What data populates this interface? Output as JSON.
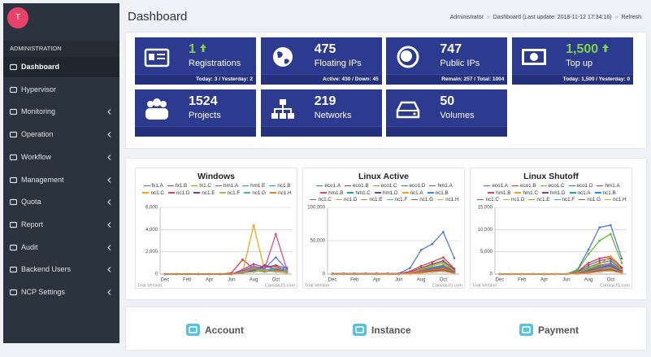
{
  "sidebar": {
    "avatar": "T",
    "section": "ADMINISTRATION",
    "active_index": 0,
    "items": [
      {
        "label": "Dashboard",
        "submenu": false
      },
      {
        "label": "Hypervisor",
        "submenu": false
      },
      {
        "label": "Monitoring",
        "submenu": true
      },
      {
        "label": "Operation",
        "submenu": true
      },
      {
        "label": "Workflow",
        "submenu": true
      },
      {
        "label": "Management",
        "submenu": true
      },
      {
        "label": "Quota",
        "submenu": true
      },
      {
        "label": "Report",
        "submenu": true
      },
      {
        "label": "Audit",
        "submenu": true
      },
      {
        "label": "Backend Users",
        "submenu": true
      },
      {
        "label": "NCP Settings",
        "submenu": true
      }
    ]
  },
  "header": {
    "title": "Dashboard",
    "breadcrumb": [
      "Administrator",
      "Dashboard (Last update: 2018-11-12 17:34:16)",
      "Refresh"
    ]
  },
  "stats": [
    {
      "value": "1",
      "label": "Registrations",
      "detail": "Today: 3 / Yesterday: 2",
      "trend": "up"
    },
    {
      "value": "475",
      "label": "Floating IPs",
      "detail": "Active: 430 / Down: 45"
    },
    {
      "value": "747",
      "label": "Public IPs",
      "detail": "Remain: 257 / Total: 1004"
    },
    {
      "value": "1,500",
      "label": "Top up",
      "detail": "Today: 1,500 / Yesterday: 0",
      "trend": "up"
    },
    {
      "value": "1524",
      "label": "Projects"
    },
    {
      "value": "219",
      "label": "Networks"
    },
    {
      "value": "50",
      "label": "Volumes"
    }
  ],
  "chart_data": [
    {
      "type": "line",
      "title": "Windows",
      "categories": [
        "Dec",
        null,
        "Feb",
        null,
        "Apr",
        null,
        "Jun",
        null,
        "Aug",
        null,
        "Oct",
        null
      ],
      "ylim": [
        0,
        6000
      ],
      "yticks": [
        0,
        {
          "value": 2000,
          "label": "2,000"
        },
        {
          "value": 4000,
          "label": "4,000"
        },
        {
          "value": 6000,
          "label": "6,000"
        }
      ],
      "grid": true,
      "watermark": [
        "Trial Version",
        "CanvasJS.com"
      ],
      "series": [
        {
          "name": "fx1.A",
          "color": "#4a6fdc",
          "values": [
            0,
            0,
            0,
            0,
            0,
            0,
            0,
            300,
            600,
            500,
            1500,
            400
          ]
        },
        {
          "name": "fx1.B",
          "color": "#d9342b",
          "values": [
            0,
            0,
            0,
            0,
            0,
            0,
            100,
            1300,
            500,
            600,
            700,
            300
          ]
        },
        {
          "name": "fx1.C",
          "color": "#5cb82b",
          "values": [
            0,
            0,
            0,
            0,
            0,
            0,
            0,
            200,
            400,
            300,
            500,
            200
          ]
        },
        {
          "name": "hm1.A",
          "color": "#8e44ad",
          "values": [
            0,
            0,
            0,
            0,
            0,
            0,
            0,
            400,
            900,
            600,
            800,
            500
          ]
        },
        {
          "name": "hm1.E",
          "color": "#16a5b8",
          "values": [
            0,
            0,
            0,
            0,
            0,
            0,
            0,
            100,
            300,
            200,
            400,
            200
          ]
        },
        {
          "name": "nc1.B",
          "color": "#1e90ff",
          "values": [
            0,
            0,
            0,
            0,
            0,
            0,
            0,
            200,
            500,
            400,
            300,
            600
          ]
        },
        {
          "name": "nc1.C",
          "color": "#f0a30a",
          "values": [
            0,
            0,
            0,
            0,
            0,
            0,
            0,
            100,
            4400,
            300,
            600,
            200
          ]
        },
        {
          "name": "nc1.D",
          "color": "#e0407a",
          "values": [
            0,
            0,
            0,
            0,
            0,
            0,
            0,
            300,
            700,
            500,
            3600,
            400
          ]
        },
        {
          "name": "nc1.E",
          "color": "#7b3fa0",
          "values": [
            0,
            0,
            0,
            0,
            0,
            0,
            0,
            200,
            300,
            800,
            400,
            300
          ]
        },
        {
          "name": "nc1.F",
          "color": "#9bbb58",
          "values": [
            0,
            0,
            0,
            0,
            0,
            0,
            0,
            100,
            200,
            300,
            200,
            100
          ]
        },
        {
          "name": "nc1.G",
          "color": "#4aacc5",
          "values": [
            0,
            0,
            0,
            0,
            0,
            0,
            0,
            200,
            600,
            400,
            500,
            300
          ]
        },
        {
          "name": "nc1.H",
          "color": "#e67e22",
          "values": [
            0,
            0,
            0,
            0,
            0,
            0,
            0,
            100,
            500,
            200,
            300,
            200
          ]
        }
      ]
    },
    {
      "type": "line",
      "title": "Linux Active",
      "categories": [
        "Dec",
        null,
        "Feb",
        null,
        "Apr",
        null,
        "Jun",
        null,
        "Aug",
        null,
        "Oct",
        null
      ],
      "ylim": [
        0,
        100000
      ],
      "yticks": [
        0,
        {
          "value": 50000,
          "label": "50,000"
        },
        {
          "value": 100000,
          "label": "100,000"
        }
      ],
      "grid": true,
      "watermark": [
        "Trial Version",
        "CanvasJS.com"
      ],
      "series": [
        {
          "name": "eco1.A",
          "color": "#4a6fdc",
          "values": [
            1000,
            1000,
            1000,
            1000,
            1000,
            1000,
            1000,
            9000,
            36000,
            45000,
            63000,
            24000
          ]
        },
        {
          "name": "eco1.B",
          "color": "#d9342b",
          "values": [
            500,
            500,
            500,
            500,
            500,
            500,
            500,
            4000,
            12000,
            18000,
            25000,
            8000
          ]
        },
        {
          "name": "eco1.C",
          "color": "#5cb82b",
          "values": [
            300,
            300,
            300,
            300,
            300,
            300,
            300,
            2000,
            8000,
            14000,
            18000,
            6000
          ]
        },
        {
          "name": "eco1.D",
          "color": "#2e8b57",
          "values": [
            200,
            200,
            200,
            200,
            200,
            200,
            200,
            1500,
            6000,
            10000,
            13000,
            5000
          ]
        },
        {
          "name": "hm1.A",
          "color": "#8e44ad",
          "values": [
            0,
            0,
            0,
            0,
            0,
            0,
            0,
            3000,
            9000,
            15000,
            20000,
            7000
          ]
        },
        {
          "name": "hm1.B",
          "color": "#e0407a",
          "values": [
            0,
            0,
            0,
            0,
            0,
            0,
            0,
            1000,
            4000,
            7000,
            9000,
            3000
          ]
        },
        {
          "name": "hm1.C",
          "color": "#16a5b8",
          "values": [
            0,
            0,
            0,
            0,
            0,
            0,
            0,
            1500,
            5000,
            8000,
            11000,
            4000
          ]
        },
        {
          "name": "hm1.D",
          "color": "#7b3fa0",
          "values": [
            0,
            0,
            0,
            0,
            0,
            0,
            0,
            800,
            3000,
            6000,
            8000,
            2000
          ]
        },
        {
          "name": "nc1.A",
          "color": "#f0a30a",
          "values": [
            0,
            0,
            0,
            0,
            0,
            0,
            0,
            2000,
            7000,
            12000,
            16000,
            5000
          ]
        },
        {
          "name": "nc1.B",
          "color": "#1e90ff",
          "values": [
            0,
            0,
            0,
            0,
            0,
            0,
            0,
            1200,
            5000,
            9000,
            12000,
            4000
          ]
        },
        {
          "name": "nc1.C",
          "color": "#c0504e",
          "values": [
            0,
            0,
            0,
            0,
            0,
            0,
            0,
            900,
            4000,
            7000,
            10000,
            3000
          ]
        },
        {
          "name": "nc1.D",
          "color": "#9bbb58",
          "values": [
            0,
            0,
            0,
            0,
            0,
            0,
            0,
            600,
            3000,
            5000,
            8000,
            2000
          ]
        },
        {
          "name": "nc1.E",
          "color": "#e67e22",
          "values": [
            0,
            0,
            0,
            0,
            0,
            0,
            0,
            1000,
            3500,
            6000,
            7000,
            2500
          ]
        },
        {
          "name": "nc1.F",
          "color": "#4aacc5",
          "values": [
            0,
            0,
            0,
            0,
            0,
            0,
            0,
            500,
            2000,
            4000,
            5000,
            1500
          ]
        },
        {
          "name": "nc1.G",
          "color": "#a0522d",
          "values": [
            0,
            0,
            0,
            0,
            0,
            0,
            0,
            700,
            2500,
            5000,
            6000,
            2000
          ]
        },
        {
          "name": "nc1.H",
          "color": "#f79647",
          "values": [
            0,
            0,
            0,
            0,
            0,
            0,
            0,
            400,
            1500,
            3000,
            4000,
            1000
          ]
        }
      ]
    },
    {
      "type": "line",
      "title": "Linux Shutoff",
      "categories": [
        "Dec",
        null,
        "Feb",
        null,
        "Apr",
        null,
        "Jun",
        null,
        "Aug",
        null,
        "Oct",
        null
      ],
      "ylim": [
        0,
        15000
      ],
      "yticks": [
        0,
        {
          "value": 5000,
          "label": "5,000"
        },
        {
          "value": 10000,
          "label": "10,000"
        },
        {
          "value": 15000,
          "label": "15,000"
        }
      ],
      "grid": true,
      "watermark": [
        "Trial Version",
        "CanvasJS.com"
      ],
      "series": [
        {
          "name": "eco1.A",
          "color": "#4a6fdc",
          "values": [
            0,
            0,
            0,
            0,
            0,
            0,
            0,
            1000,
            5500,
            10500,
            11000,
            3500
          ]
        },
        {
          "name": "eco1.B",
          "color": "#d9342b",
          "values": [
            0,
            0,
            0,
            0,
            0,
            0,
            0,
            500,
            2500,
            3500,
            4000,
            1500
          ]
        },
        {
          "name": "eco1.C",
          "color": "#5cb82b",
          "values": [
            0,
            0,
            0,
            0,
            0,
            0,
            0,
            800,
            4500,
            7500,
            9000,
            2500
          ]
        },
        {
          "name": "eco1.D",
          "color": "#2e8b57",
          "values": [
            0,
            0,
            0,
            0,
            0,
            0,
            0,
            300,
            1500,
            2500,
            3000,
            1000
          ]
        },
        {
          "name": "hm1.A",
          "color": "#8e44ad",
          "values": [
            0,
            0,
            0,
            0,
            0,
            0,
            0,
            400,
            2000,
            3000,
            3500,
            1200
          ]
        },
        {
          "name": "hm1.B",
          "color": "#e0407a",
          "values": [
            0,
            0,
            0,
            0,
            0,
            0,
            0,
            200,
            1000,
            2000,
            2500,
            800
          ]
        },
        {
          "name": "hm1.C",
          "color": "#f0a30a",
          "values": [
            0,
            0,
            0,
            0,
            0,
            0,
            0,
            300,
            1200,
            2200,
            4000,
            900
          ]
        },
        {
          "name": "hm1.D",
          "color": "#7b3fa0",
          "values": [
            0,
            0,
            0,
            0,
            0,
            0,
            0,
            100,
            800,
            1500,
            2000,
            600
          ]
        },
        {
          "name": "nc1.A",
          "color": "#16a5b8",
          "values": [
            0,
            0,
            0,
            0,
            0,
            0,
            0,
            200,
            1000,
            1800,
            2200,
            700
          ]
        },
        {
          "name": "nc1.B",
          "color": "#1e90ff",
          "values": [
            0,
            0,
            0,
            0,
            0,
            0,
            0,
            100,
            600,
            1200,
            1500,
            500
          ]
        },
        {
          "name": "nc1.C",
          "color": "#c0504e",
          "values": [
            0,
            0,
            0,
            0,
            0,
            0,
            0,
            150,
            700,
            1400,
            1800,
            600
          ]
        },
        {
          "name": "nc1.D",
          "color": "#9bbb58",
          "values": [
            0,
            0,
            0,
            0,
            0,
            0,
            0,
            100,
            500,
            1000,
            1300,
            400
          ]
        },
        {
          "name": "nc1.E",
          "color": "#e67e22",
          "values": [
            0,
            0,
            0,
            0,
            0,
            0,
            0,
            100,
            400,
            900,
            1100,
            300
          ]
        },
        {
          "name": "nc1.F",
          "color": "#4aacc5",
          "values": [
            0,
            0,
            0,
            0,
            0,
            0,
            0,
            50,
            300,
            700,
            900,
            300
          ]
        },
        {
          "name": "nc1.G",
          "color": "#a0522d",
          "values": [
            0,
            0,
            0,
            0,
            0,
            0,
            0,
            80,
            400,
            800,
            1000,
            350
          ]
        },
        {
          "name": "nc1.H",
          "color": "#f79647",
          "values": [
            0,
            0,
            0,
            0,
            0,
            0,
            0,
            50,
            200,
            500,
            700,
            200
          ]
        }
      ]
    }
  ],
  "sections": [
    "Account",
    "Instance",
    "Payment"
  ]
}
